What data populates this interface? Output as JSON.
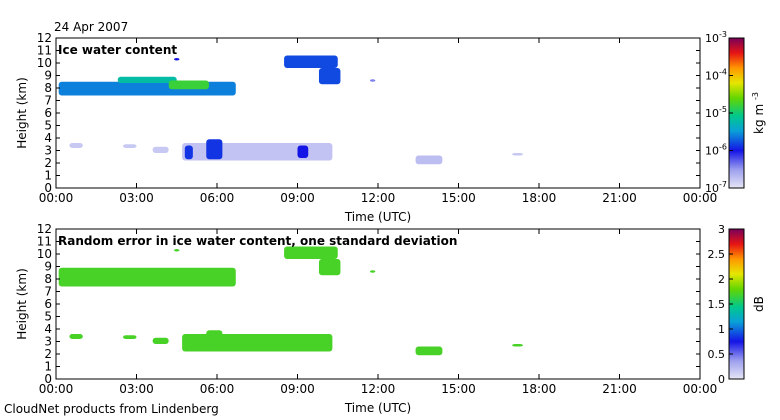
{
  "header": {
    "date": "24 Apr 2007"
  },
  "footer": {
    "credit": "CloudNet products from Lindenberg"
  },
  "chart_data": [
    {
      "type": "heatmap",
      "title": "Ice water content",
      "xlabel": "Time (UTC)",
      "ylabel": "Height (km)",
      "x_ticks": [
        "00:00",
        "03:00",
        "06:00",
        "09:00",
        "12:00",
        "15:00",
        "18:00",
        "21:00",
        "00:00"
      ],
      "y_ticks": [
        "0",
        "1",
        "2",
        "3",
        "4",
        "5",
        "6",
        "7",
        "8",
        "9",
        "10",
        "11",
        "12"
      ],
      "ylim": [
        0,
        12
      ],
      "xlim_hours": [
        0,
        24
      ],
      "colorbar": {
        "scale": "log",
        "unit_base": "kg m",
        "unit_exp": "-3",
        "ticks": [
          {
            "base": "10",
            "exp": "-3",
            "value": -3
          },
          {
            "base": "10",
            "exp": "-4",
            "value": -4
          },
          {
            "base": "10",
            "exp": "-5",
            "value": -5
          },
          {
            "base": "10",
            "exp": "-6",
            "value": -6
          },
          {
            "base": "10",
            "exp": "-7",
            "value": -7
          }
        ],
        "range_log10": [
          -7,
          -3
        ]
      },
      "regions": [
        {
          "t0": 0.1,
          "t1": 6.7,
          "h0": 7.4,
          "h1": 8.5,
          "level": 0.35
        },
        {
          "t0": 2.3,
          "t1": 4.5,
          "h0": 8.4,
          "h1": 8.9,
          "level": 0.45
        },
        {
          "t0": 4.2,
          "t1": 5.7,
          "h0": 7.9,
          "h1": 8.6,
          "level": 0.55
        },
        {
          "t0": 8.5,
          "t1": 10.5,
          "h0": 9.6,
          "h1": 10.6,
          "level": 0.3
        },
        {
          "t0": 9.8,
          "t1": 10.6,
          "h0": 8.3,
          "h1": 9.6,
          "level": 0.3
        },
        {
          "t0": 11.7,
          "t1": 11.9,
          "h0": 8.5,
          "h1": 8.7,
          "level": 0.15
        },
        {
          "t0": 4.4,
          "t1": 4.6,
          "h0": 10.2,
          "h1": 10.4,
          "level": 0.25
        },
        {
          "t0": 0.5,
          "t1": 1.0,
          "h0": 3.2,
          "h1": 3.6,
          "level": 0.05
        },
        {
          "t0": 2.5,
          "t1": 3.0,
          "h0": 3.2,
          "h1": 3.5,
          "level": 0.05
        },
        {
          "t0": 3.6,
          "t1": 4.2,
          "h0": 2.8,
          "h1": 3.3,
          "level": 0.05
        },
        {
          "t0": 4.7,
          "t1": 10.3,
          "h0": 2.2,
          "h1": 3.6,
          "level": 0.06
        },
        {
          "t0": 4.8,
          "t1": 5.1,
          "h0": 2.3,
          "h1": 3.4,
          "level": 0.28
        },
        {
          "t0": 5.6,
          "t1": 6.2,
          "h0": 2.3,
          "h1": 3.9,
          "level": 0.28
        },
        {
          "t0": 9.0,
          "t1": 9.4,
          "h0": 2.4,
          "h1": 3.4,
          "level": 0.25
        },
        {
          "t0": 13.4,
          "t1": 14.4,
          "h0": 1.9,
          "h1": 2.6,
          "level": 0.07
        },
        {
          "t0": 17.0,
          "t1": 17.4,
          "h0": 2.6,
          "h1": 2.8,
          "level": 0.05
        }
      ]
    },
    {
      "type": "heatmap",
      "title": "Random error in ice water content, one standard deviation",
      "xlabel": "Time (UTC)",
      "ylabel": "Height (km)",
      "x_ticks": [
        "00:00",
        "03:00",
        "06:00",
        "09:00",
        "12:00",
        "15:00",
        "18:00",
        "21:00",
        "00:00"
      ],
      "y_ticks": [
        "0",
        "1",
        "2",
        "3",
        "4",
        "5",
        "6",
        "7",
        "8",
        "9",
        "10",
        "11",
        "12"
      ],
      "ylim": [
        0,
        12
      ],
      "xlim_hours": [
        0,
        24
      ],
      "colorbar": {
        "scale": "linear",
        "unit": "dB",
        "ticks": [
          "0",
          "0.5",
          "1",
          "1.5",
          "2",
          "2.5",
          "3"
        ],
        "range": [
          0,
          3
        ]
      },
      "regions": [
        {
          "t0": 0.1,
          "t1": 6.7,
          "h0": 7.4,
          "h1": 8.9,
          "value": 1.7
        },
        {
          "t0": 8.5,
          "t1": 10.5,
          "h0": 9.6,
          "h1": 10.6,
          "value": 1.7
        },
        {
          "t0": 9.8,
          "t1": 10.6,
          "h0": 8.3,
          "h1": 9.6,
          "value": 1.7
        },
        {
          "t0": 11.7,
          "t1": 11.9,
          "h0": 8.5,
          "h1": 8.7,
          "value": 1.7
        },
        {
          "t0": 4.4,
          "t1": 4.6,
          "h0": 10.2,
          "h1": 10.4,
          "value": 1.7
        },
        {
          "t0": 0.5,
          "t1": 1.0,
          "h0": 3.2,
          "h1": 3.6,
          "value": 1.7
        },
        {
          "t0": 2.5,
          "t1": 3.0,
          "h0": 3.2,
          "h1": 3.5,
          "value": 1.7
        },
        {
          "t0": 3.6,
          "t1": 4.2,
          "h0": 2.8,
          "h1": 3.3,
          "value": 1.7
        },
        {
          "t0": 4.7,
          "t1": 10.3,
          "h0": 2.2,
          "h1": 3.6,
          "value": 1.7
        },
        {
          "t0": 5.6,
          "t1": 6.2,
          "h0": 2.3,
          "h1": 3.9,
          "value": 1.7
        },
        {
          "t0": 13.4,
          "t1": 14.4,
          "h0": 1.9,
          "h1": 2.6,
          "value": 1.7
        },
        {
          "t0": 17.0,
          "t1": 17.4,
          "h0": 2.6,
          "h1": 2.8,
          "value": 1.7
        }
      ]
    }
  ]
}
